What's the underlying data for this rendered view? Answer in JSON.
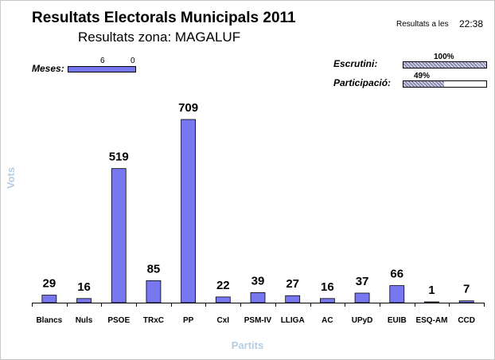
{
  "header": {
    "title": "Resultats Electorals Municipals 2011",
    "subtitle": "Resultats zona: MAGALUF",
    "time_label": "Resultats a les",
    "time_value": "22:38"
  },
  "meses": {
    "label": "Meses:",
    "value_a": "6",
    "value_b": "0"
  },
  "progress": {
    "escrutini_label": "Escrutini:",
    "escrutini_text": "100%",
    "escrutini_fraction": 1.0,
    "participacio_label": "Participació:",
    "participacio_text": "49%",
    "participacio_fraction": 0.49
  },
  "colors": {
    "bar": "#7777f0",
    "axis_title": "#b3cde4"
  },
  "chart_data": {
    "type": "bar",
    "xlabel": "Partits",
    "ylabel": "Vots",
    "ylim": [
      0,
      709
    ],
    "grid": false,
    "categories": [
      "Blancs",
      "Nuls",
      "PSOE",
      "TRxC",
      "PP",
      "CxI",
      "PSM-IV",
      "LLIGA",
      "AC",
      "UPyD",
      "EUIB",
      "ESQ-AM",
      "CCD"
    ],
    "values": [
      29,
      16,
      519,
      85,
      709,
      22,
      39,
      27,
      16,
      37,
      66,
      1,
      7
    ]
  }
}
